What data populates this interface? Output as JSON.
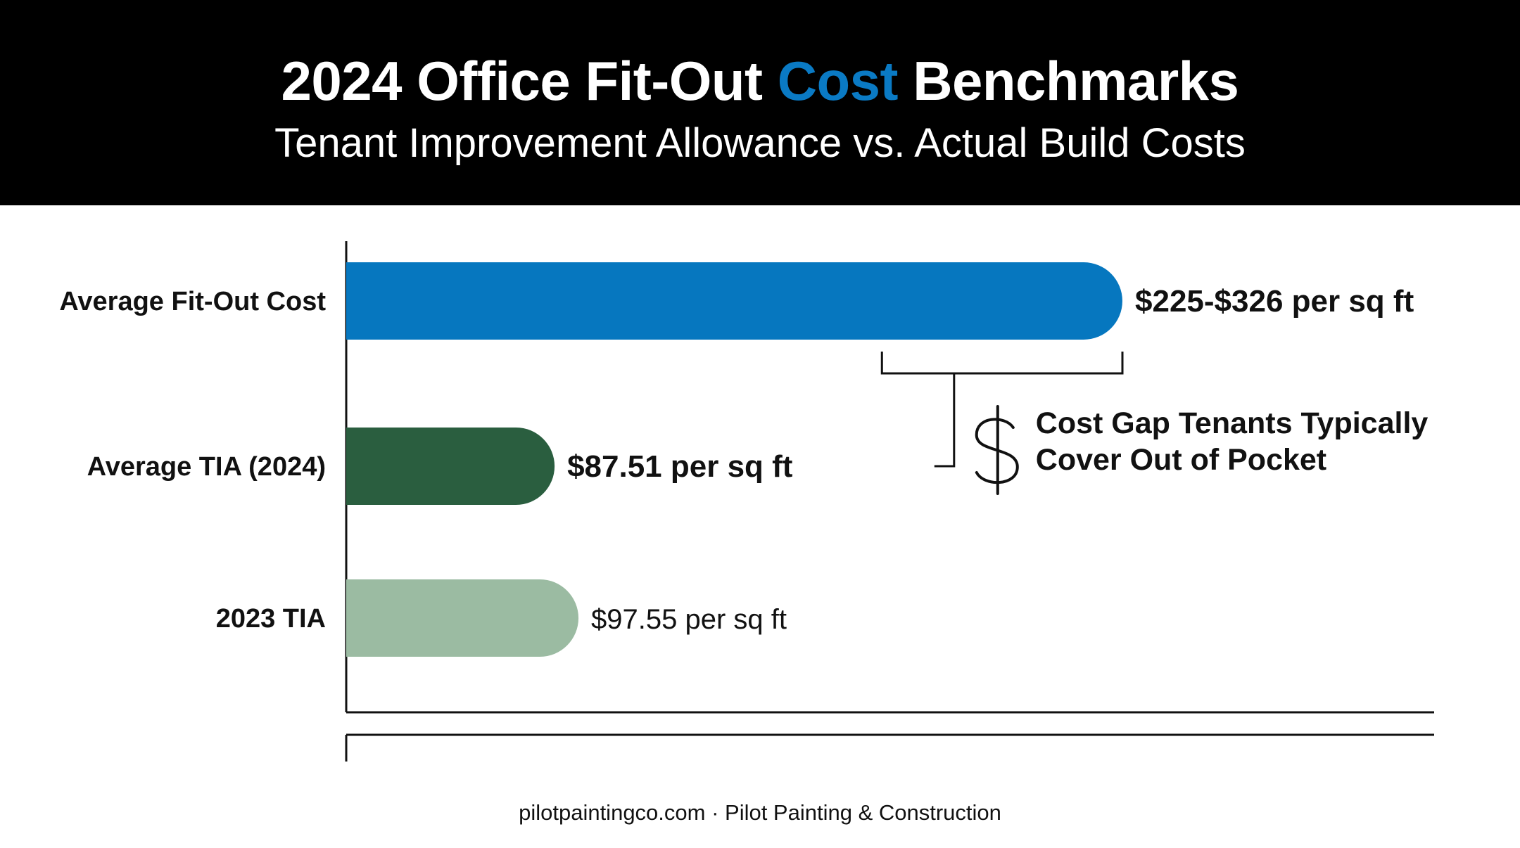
{
  "header": {
    "title_before": "2024 Office Fit-Out ",
    "title_accent": "Cost",
    "title_after": " Benchmarks",
    "subtitle": "Tenant Improvement Allowance vs. Actual Build Costs"
  },
  "footer": "pilotpaintingco.com · Pilot Painting & Construction",
  "chart_data": {
    "type": "bar",
    "orientation": "horizontal",
    "title": "2024 Office Fit-Out Cost Benchmarks",
    "subtitle": "Tenant Improvement Allowance vs. Actual Build Costs",
    "categories": [
      "Average Fit-Out Cost",
      "Average TIA (2024)",
      "2023 TIA"
    ],
    "values": [
      326,
      87.51,
      97.55
    ],
    "value_ranges": [
      [
        225,
        326
      ],
      null,
      null
    ],
    "data_labels": [
      "$225-$326 per sq ft",
      "$87.51 per sq ft",
      "$97.55 per sq ft"
    ],
    "colors": [
      "#0677bf",
      "#2a5e3f",
      "#9bbba2"
    ],
    "label_bold": [
      true,
      true,
      false
    ],
    "units": "per sq ft",
    "xlim": [
      0,
      326
    ],
    "grid": false,
    "annotation": {
      "line1": "Cost Gap Tenants Typically",
      "line2": "Cover Out of Pocket",
      "icon": "dollar-sign-icon",
      "from_value": 225,
      "to_value": 326,
      "links_to": "Average TIA (2024)"
    }
  }
}
